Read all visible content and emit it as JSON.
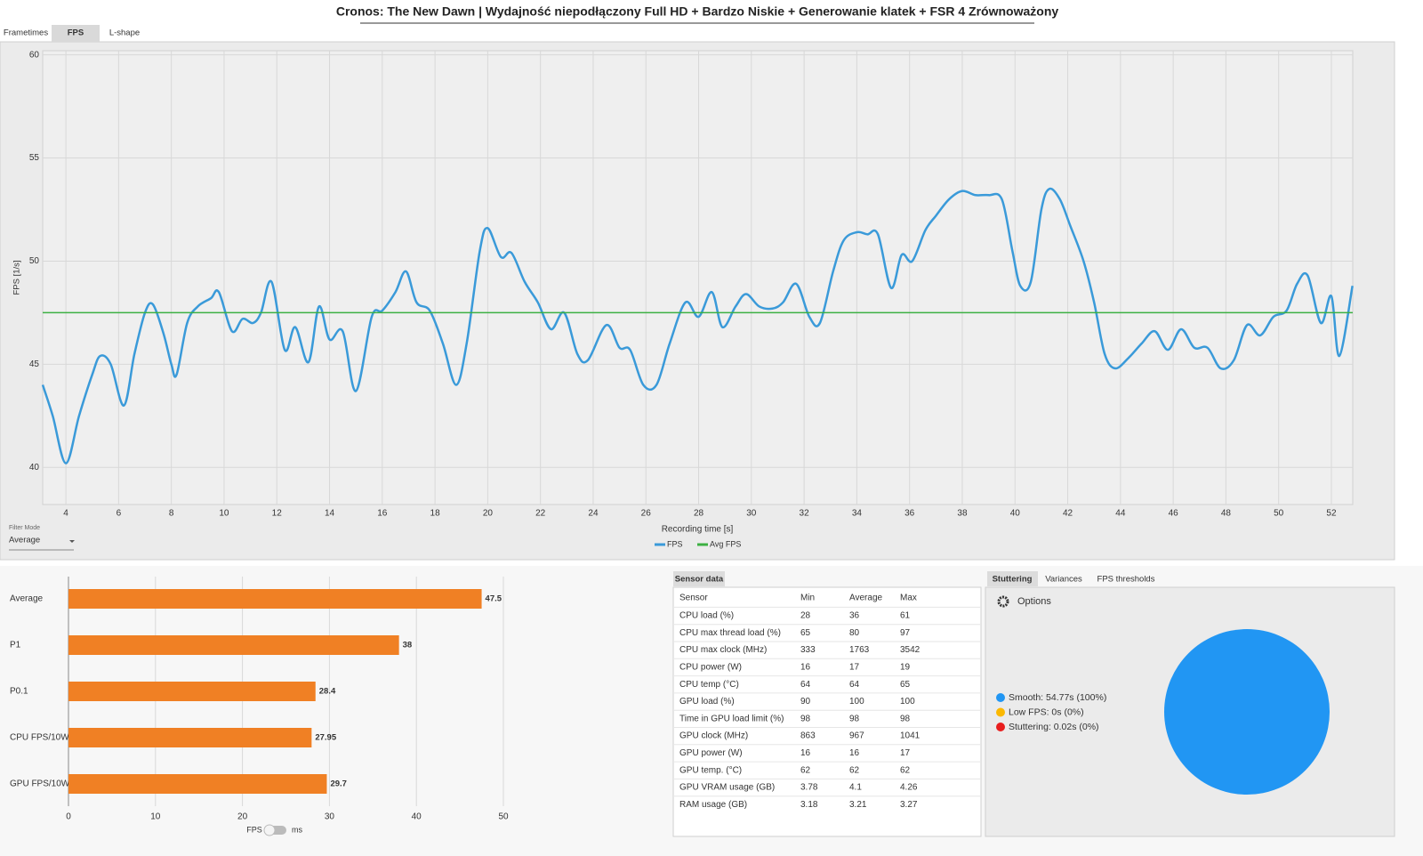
{
  "title": "Cronos: The New Dawn | Wydajność niepodłączony Full HD + Bardzo Niskie + Generowanie klatek + FSR 4 Zrównoważony",
  "view_tabs": [
    "Frametimes",
    "FPS",
    "L-shape"
  ],
  "filter": {
    "label": "Filter Mode",
    "value": "Average"
  },
  "toggle": {
    "left": "FPS",
    "right": "ms"
  },
  "sensor_tab": "Sensor data",
  "sensor_table": {
    "columns": [
      "Sensor",
      "Min",
      "Average",
      "Max"
    ],
    "rows": [
      [
        "CPU load (%)",
        "28",
        "36",
        "61"
      ],
      [
        "CPU max thread load (%)",
        "65",
        "80",
        "97"
      ],
      [
        "CPU max clock (MHz)",
        "333",
        "1763",
        "3542"
      ],
      [
        "CPU power (W)",
        "16",
        "17",
        "19"
      ],
      [
        "CPU temp (°C)",
        "64",
        "64",
        "65"
      ],
      [
        "GPU load (%)",
        "90",
        "100",
        "100"
      ],
      [
        "Time in GPU load limit (%)",
        "98",
        "98",
        "98"
      ],
      [
        "GPU clock (MHz)",
        "863",
        "967",
        "1041"
      ],
      [
        "GPU power (W)",
        "16",
        "16",
        "17"
      ],
      [
        "GPU temp. (°C)",
        "62",
        "62",
        "62"
      ],
      [
        "GPU VRAM usage (GB)",
        "3.78",
        "4.1",
        "4.26"
      ],
      [
        "RAM usage (GB)",
        "3.18",
        "3.21",
        "3.27"
      ]
    ]
  },
  "analysis_tabs": [
    "Stuttering",
    "Variances",
    "FPS thresholds"
  ],
  "options_label": "Options",
  "chart_data": [
    {
      "type": "line",
      "xlabel": "Recording time [s]",
      "ylabel": "FPS [1/s]",
      "xlim": [
        3.12,
        52.81
      ],
      "ylim": [
        38.2,
        60.2
      ],
      "xticks": [
        4,
        6,
        8,
        10,
        12,
        14,
        16,
        18,
        20,
        22,
        24,
        26,
        28,
        30,
        32,
        34,
        36,
        38,
        40,
        42,
        44,
        46,
        48,
        50,
        52
      ],
      "yticks": [
        40,
        45,
        50,
        55,
        60
      ],
      "grid": true,
      "legend": "bottom",
      "series": [
        {
          "name": "FPS",
          "color": "#3a9ad9",
          "x": [
            3.12,
            3.5,
            4.0,
            4.5,
            5.0,
            5.3,
            5.7,
            6.2,
            6.6,
            7.0,
            7.3,
            7.7,
            8.0,
            8.2,
            8.6,
            9.0,
            9.5,
            9.8,
            10.3,
            10.7,
            11.1,
            11.4,
            11.8,
            12.3,
            12.7,
            13.2,
            13.6,
            14.0,
            14.5,
            15.0,
            15.6,
            16.0,
            16.5,
            16.9,
            17.3,
            17.8,
            18.3,
            18.8,
            19.2,
            19.7,
            20.0,
            20.5,
            20.9,
            21.4,
            21.9,
            22.4,
            22.9,
            23.4,
            23.8,
            24.5,
            25.0,
            25.4,
            25.9,
            26.4,
            26.9,
            27.5,
            28.0,
            28.5,
            28.9,
            29.4,
            29.8,
            30.3,
            30.8,
            31.2,
            31.7,
            32.2,
            32.6,
            33.1,
            33.5,
            34.0,
            34.4,
            34.8,
            35.3,
            35.7,
            36.1,
            36.6,
            37.0,
            37.5,
            38.0,
            38.5,
            39.0,
            39.5,
            39.9,
            40.2,
            40.6,
            41.0,
            41.3,
            41.7,
            42.1,
            42.6,
            43.0,
            43.4,
            43.8,
            44.3,
            44.8,
            45.3,
            45.8,
            46.3,
            46.8,
            47.3,
            47.8,
            48.3,
            48.8,
            49.3,
            49.8,
            50.3,
            50.7,
            51.1,
            51.6,
            52.0,
            52.3,
            52.8
          ],
          "values": [
            44.0,
            42.5,
            40.2,
            42.5,
            44.5,
            45.4,
            45.0,
            43.0,
            45.5,
            47.5,
            47.9,
            46.5,
            45.0,
            44.5,
            47.0,
            47.8,
            48.2,
            48.5,
            46.6,
            47.2,
            47.0,
            47.5,
            49.0,
            45.7,
            46.8,
            45.1,
            47.8,
            46.2,
            46.6,
            43.7,
            47.3,
            47.6,
            48.5,
            49.5,
            48.0,
            47.6,
            46.0,
            44.0,
            46.0,
            50.5,
            51.6,
            50.2,
            50.4,
            49.0,
            48.0,
            46.7,
            47.5,
            45.5,
            45.2,
            46.9,
            45.8,
            45.7,
            44.0,
            44.0,
            46.0,
            48.0,
            47.3,
            48.5,
            46.8,
            47.8,
            48.4,
            47.8,
            47.7,
            48.0,
            48.9,
            47.3,
            47.0,
            49.5,
            51.0,
            51.4,
            51.3,
            51.3,
            48.7,
            50.3,
            50.0,
            51.5,
            52.2,
            53.0,
            53.4,
            53.2,
            53.2,
            53.0,
            50.5,
            48.8,
            49.0,
            52.5,
            53.5,
            53.0,
            51.7,
            50.0,
            48.0,
            45.5,
            44.8,
            45.3,
            46.0,
            46.6,
            45.7,
            46.7,
            45.8,
            45.8,
            44.8,
            45.2,
            46.9,
            46.4,
            47.3,
            47.6,
            48.9,
            49.3,
            47.0,
            48.3,
            45.4,
            48.8
          ]
        },
        {
          "name": "Avg FPS",
          "color": "#3cb043",
          "x": [
            3.12,
            52.81
          ],
          "values": [
            47.5,
            47.5
          ]
        }
      ]
    },
    {
      "type": "hbar",
      "categories": [
        "Average",
        "P1",
        "P0.1",
        "CPU FPS/10W",
        "GPU FPS/10W"
      ],
      "values": [
        47.5,
        38,
        28.4,
        27.95,
        29.7
      ],
      "color": "#f08024",
      "xlim": [
        0,
        50
      ],
      "xticks": [
        0,
        10,
        20,
        30,
        40,
        50
      ],
      "grid": true
    },
    {
      "type": "pie",
      "labels": [
        "Smooth: 54.77s (100%)",
        "Low FPS: 0s (0%)",
        "Stuttering: 0.02s (0%)"
      ],
      "values": [
        100,
        0,
        0
      ],
      "colors": [
        "#2196f3",
        "#fbb800",
        "#e81e1e"
      ]
    }
  ]
}
